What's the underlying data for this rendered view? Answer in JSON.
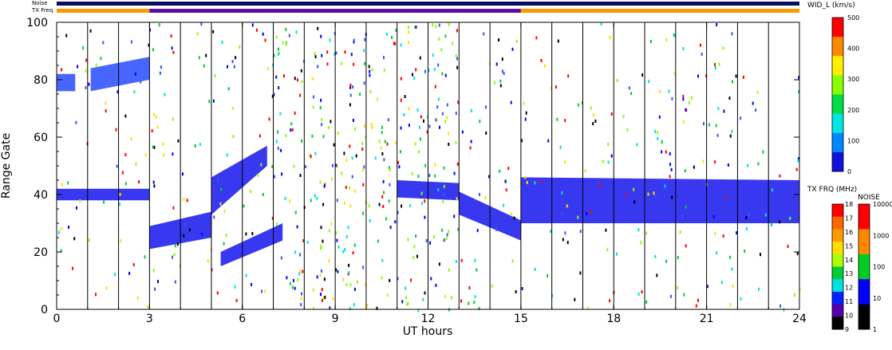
{
  "chart_data": {
    "type": "heatmap",
    "xlabel": "UT hours",
    "ylabel": "Range Gate",
    "xlim": [
      0,
      24
    ],
    "ylim": [
      0,
      100
    ],
    "x_ticks": [
      "0",
      "3",
      "6",
      "9",
      "12",
      "15",
      "18",
      "21",
      "24"
    ],
    "y_ticks": [
      "0",
      "20",
      "40",
      "60",
      "80",
      "100"
    ],
    "scan_boundaries_hours": [
      1,
      2,
      3,
      4,
      5,
      6,
      7,
      8,
      9,
      10,
      11,
      12,
      13,
      14,
      15,
      16,
      17,
      18,
      19,
      20,
      21,
      22,
      23
    ],
    "series": [
      {
        "name": "Noise",
        "segments": [
          {
            "x0": 0,
            "x1": 24,
            "color": "#0b0b5e"
          }
        ]
      },
      {
        "name": "TX Freq",
        "segments": [
          {
            "x0": 0,
            "x1": 3,
            "color": "#ff9900"
          },
          {
            "x0": 3,
            "x1": 15,
            "color": "#5a0fa8"
          },
          {
            "x0": 15,
            "x1": 24,
            "color": "#ff9900"
          }
        ]
      }
    ],
    "echo_bands": [
      {
        "t0": 0.0,
        "t1": 3.0,
        "g0": 38,
        "g1": 42,
        "g2": 38,
        "g3": 42,
        "color": "#2222ee"
      },
      {
        "t0": 3.0,
        "t1": 5.0,
        "g0": 21,
        "g1": 29,
        "g2": 25,
        "g3": 34,
        "color": "#2222ee"
      },
      {
        "t0": 5.0,
        "t1": 6.8,
        "g0": 33,
        "g1": 46,
        "g2": 50,
        "g3": 57,
        "color": "#2222ee"
      },
      {
        "t0": 5.3,
        "t1": 7.3,
        "g0": 15,
        "g1": 20,
        "g2": 24,
        "g3": 30,
        "color": "#2222ee"
      },
      {
        "t0": 11.0,
        "t1": 13.0,
        "g0": 39,
        "g1": 45,
        "g2": 38,
        "g3": 44,
        "color": "#2222ee"
      },
      {
        "t0": 13.0,
        "t1": 15.0,
        "g0": 33,
        "g1": 41,
        "g2": 24,
        "g3": 31,
        "color": "#2222ee"
      },
      {
        "t0": 15.0,
        "t1": 24.0,
        "g0": 30,
        "g1": 46,
        "g2": 30,
        "g3": 45,
        "color": "#2222ee"
      },
      {
        "t0": 0.0,
        "t1": 0.6,
        "g0": 76,
        "g1": 82,
        "g2": 76,
        "g3": 82,
        "color": "#3355ff"
      },
      {
        "t0": 1.1,
        "t1": 3.0,
        "g0": 76,
        "g1": 84,
        "g2": 80,
        "g3": 88,
        "color": "#3355ff"
      }
    ],
    "legend": {
      "width": {
        "title": "WID_L (km/s)",
        "ticks": [
          "500",
          "400",
          "300",
          "200",
          "100",
          "0"
        ],
        "colors": [
          "#ff0000",
          "#ff8800",
          "#ffee00",
          "#88ff00",
          "#00dd44",
          "#00e6e6",
          "#0088ff",
          "#1111dd"
        ]
      },
      "tx_freq": {
        "title": "TX FRQ (MHz)",
        "ticks": [
          "18",
          "17",
          "16",
          "15",
          "14",
          "13",
          "12",
          "11",
          "10",
          "9"
        ],
        "colors": [
          "#ff0000",
          "#ff6600",
          "#ff9900",
          "#ffdd00",
          "#aaff00",
          "#00cc33",
          "#00e0e0",
          "#0022ff",
          "#5500aa",
          "#000000"
        ]
      },
      "noise": {
        "title": "NOISE",
        "ticks": [
          "10000",
          "1000",
          "100",
          "10",
          "1"
        ],
        "colors": [
          "#ff0000",
          "#ff8800",
          "#00cc22",
          "#0000ff",
          "#000000"
        ]
      }
    },
    "bar_labels": {
      "noise": "Noise",
      "tx_freq": "TX Freq"
    },
    "grid": false
  }
}
